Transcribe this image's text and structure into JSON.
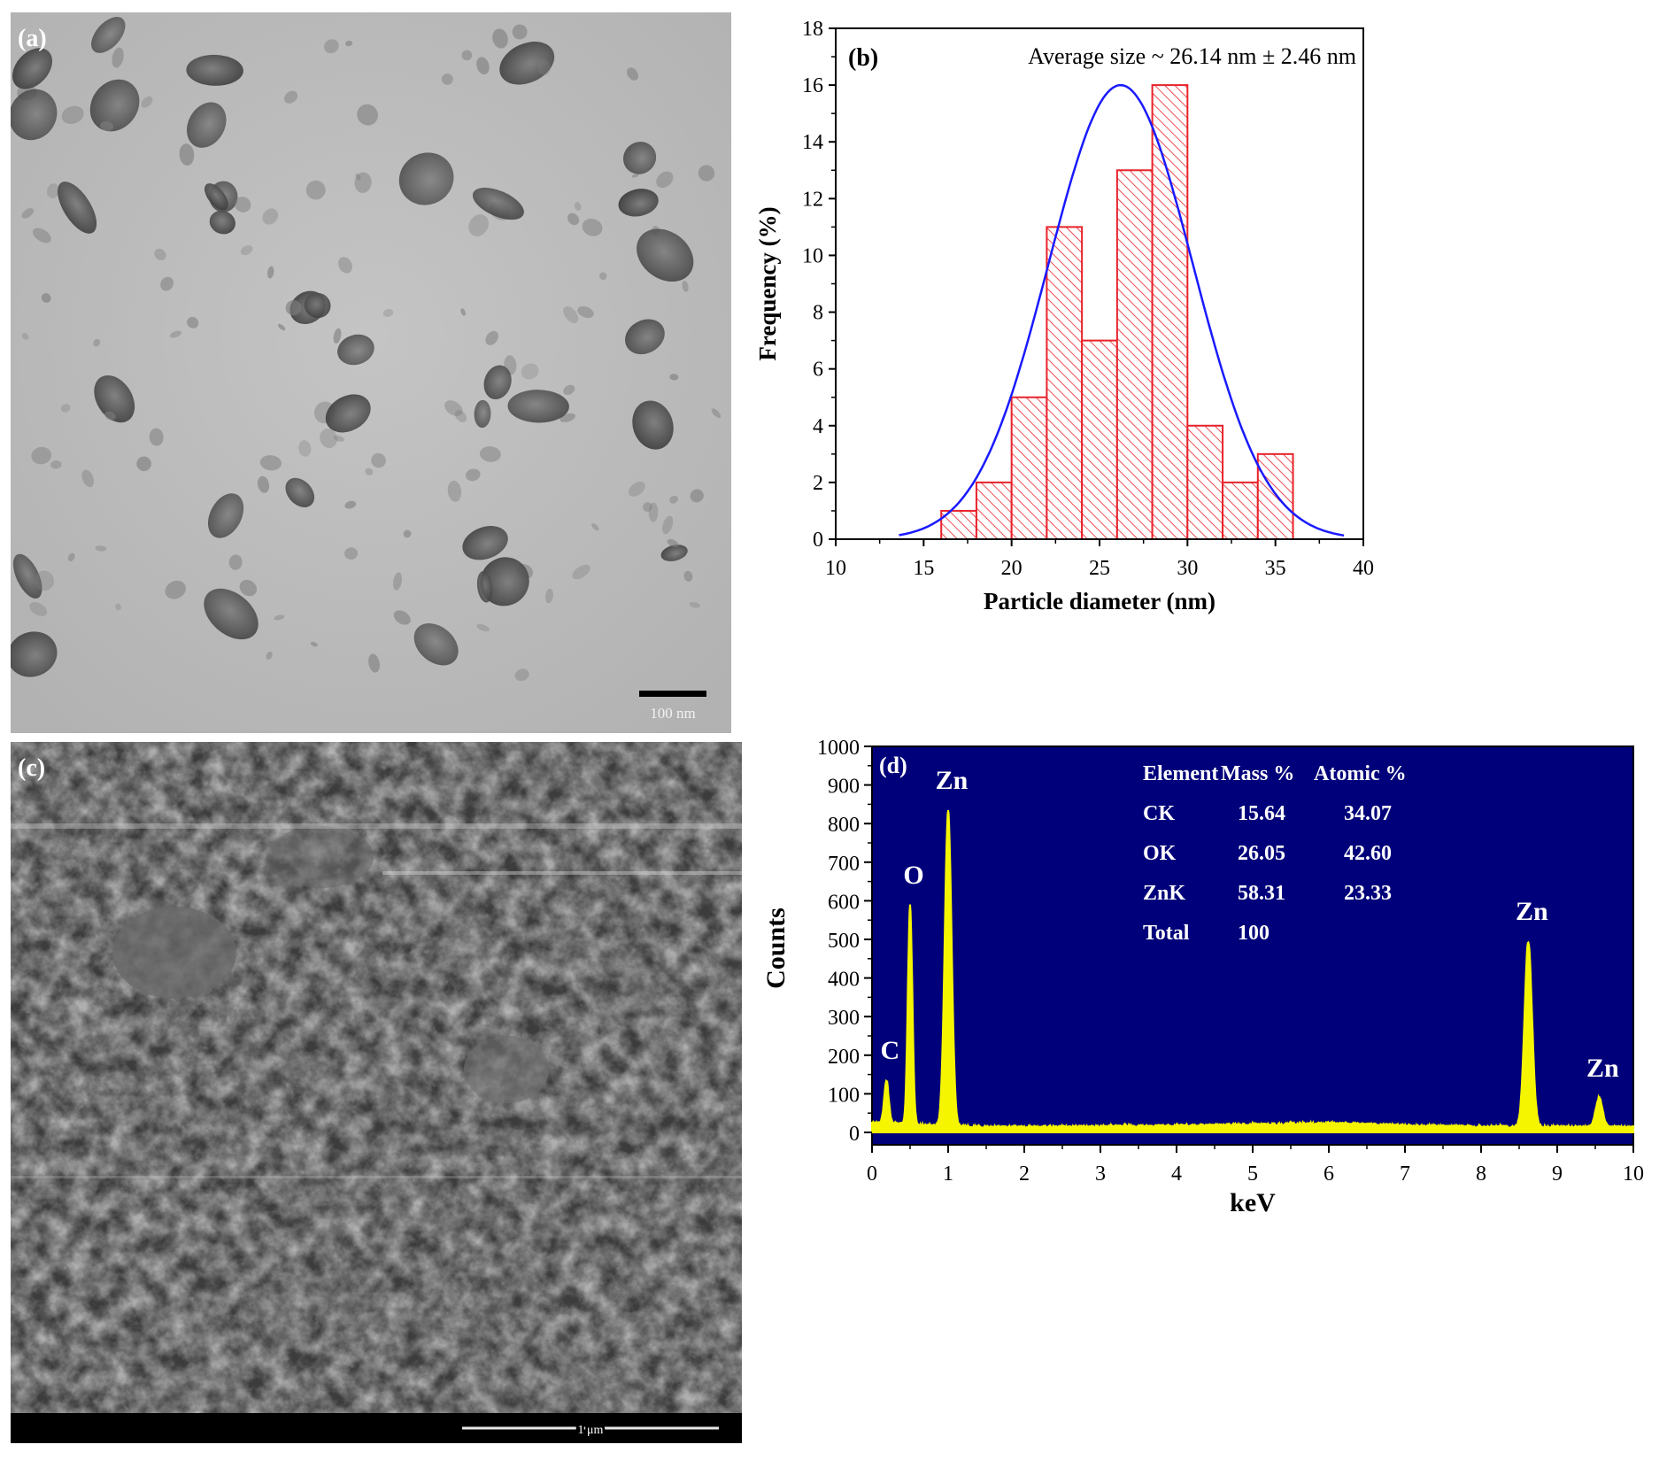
{
  "panels": {
    "a": {
      "label": "(a)",
      "scale_bar": "100 nm"
    },
    "c": {
      "label": "(c)",
      "scale_bar": "1 μm"
    }
  },
  "colors": {
    "histogram_bar": "#e8222a",
    "fit_curve": "#1a1aff",
    "eds_background": "#00007a",
    "eds_spectrum": "#f5f500"
  },
  "chart_data": [
    {
      "panel_label": "(b)",
      "type": "bar",
      "annotation": "Average size ~ 26.14 nm  ± 2.46 nm",
      "xlabel": "Particle diameter (nm)",
      "ylabel": "Frequency (%)",
      "xlim": [
        10,
        40
      ],
      "ylim": [
        0,
        18
      ],
      "xticks": [
        10,
        15,
        20,
        25,
        30,
        35,
        40
      ],
      "yticks": [
        0,
        2,
        4,
        6,
        8,
        10,
        12,
        14,
        16,
        18
      ],
      "bins": [
        {
          "x0": 16,
          "x1": 18,
          "value": 1
        },
        {
          "x0": 18,
          "x1": 20,
          "value": 2
        },
        {
          "x0": 20,
          "x1": 22,
          "value": 5
        },
        {
          "x0": 22,
          "x1": 24,
          "value": 11
        },
        {
          "x0": 24,
          "x1": 26,
          "value": 7
        },
        {
          "x0": 26,
          "x1": 28,
          "value": 13
        },
        {
          "x0": 28,
          "x1": 30,
          "value": 16
        },
        {
          "x0": 30,
          "x1": 32,
          "value": 4
        },
        {
          "x0": 32,
          "x1": 34,
          "value": 2
        },
        {
          "x0": 34,
          "x1": 36,
          "value": 3
        }
      ],
      "fit": {
        "type": "gaussian",
        "center": 26.2,
        "sigma": 4.1,
        "peak": 16,
        "x_range": [
          13.6,
          38.9
        ]
      },
      "grid": false
    },
    {
      "panel_label": "(d)",
      "type": "line",
      "xlabel": "keV",
      "ylabel": "Counts",
      "xlim": [
        0,
        10
      ],
      "ylim": [
        0,
        1000
      ],
      "xticks": [
        0,
        1,
        2,
        3,
        4,
        5,
        6,
        7,
        8,
        9,
        10
      ],
      "yticks": [
        0,
        100,
        200,
        300,
        400,
        500,
        600,
        700,
        800,
        900,
        1000
      ],
      "peaks": [
        {
          "label": "C",
          "energy": 0.19,
          "counts": 135,
          "width": 0.03
        },
        {
          "label": "O",
          "energy": 0.5,
          "counts": 590,
          "width": 0.03
        },
        {
          "label": "Zn",
          "energy": 1.0,
          "counts": 835,
          "width": 0.045
        },
        {
          "label": "Zn",
          "energy": 8.62,
          "counts": 495,
          "width": 0.05
        },
        {
          "label": "Zn",
          "energy": 9.55,
          "counts": 90,
          "width": 0.045
        }
      ],
      "baseline": [
        [
          0,
          25
        ],
        [
          0.8,
          18
        ],
        [
          1.5,
          14
        ],
        [
          3,
          15
        ],
        [
          5,
          20
        ],
        [
          6,
          24
        ],
        [
          7,
          18
        ],
        [
          8,
          15
        ],
        [
          10,
          14
        ]
      ],
      "table": {
        "headers": [
          "Element",
          "Mass %",
          "Atomic %"
        ],
        "rows": [
          [
            "CK",
            "15.64",
            "34.07"
          ],
          [
            "OK",
            "26.05",
            "42.60"
          ],
          [
            "ZnK",
            "58.31",
            "23.33"
          ],
          [
            "Total",
            "100",
            ""
          ]
        ]
      },
      "grid": false
    }
  ]
}
